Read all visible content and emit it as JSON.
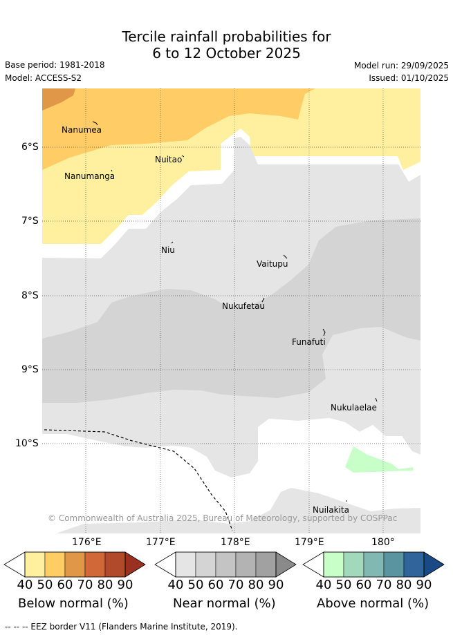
{
  "header": {
    "title_line1": "Tercile rainfall probabilities for",
    "title_line2": "6 to 12 October 2025",
    "base_period": "Base period: 1981-2018",
    "model": "Model: ACCESS-S2",
    "model_run": "Model run: 29/09/2025",
    "issued": "Issued: 01/10/2025"
  },
  "map": {
    "lat_labels": [
      "6°S",
      "7°S",
      "8°S",
      "9°S",
      "10°S"
    ],
    "lon_labels": [
      "176°E",
      "177°E",
      "178°E",
      "179°E",
      "180°"
    ],
    "places": {
      "nanumea": "Nanumea",
      "nuitao": "Nuitao",
      "nanumanga": "Nanumanga",
      "niu": "Niu",
      "vaitupu": "Vaitupu",
      "nukufetau": "Nukufetau",
      "funafuti": "Funafuti",
      "nukulaelae": "Nukulaelae",
      "nuilakita": "Nuilakita"
    },
    "copyright": "© Commonwealth of Australia 2025, Bureau of Meteorology, supported by COSPPac"
  },
  "legend": {
    "ticks": [
      "40",
      "50",
      "60",
      "70",
      "80",
      "90"
    ],
    "below": {
      "label": "Below normal (%)",
      "colors": [
        "#fff0a0",
        "#ffcc66",
        "#e09848",
        "#d06838",
        "#b04a2a",
        "#9a3020"
      ]
    },
    "near": {
      "label": "Near normal (%)",
      "colors": [
        "#e5e5e5",
        "#d4d4d4",
        "#c4c4c4",
        "#b3b3b3",
        "#a1a1a1",
        "#8a8a8a"
      ]
    },
    "above": {
      "label": "Above normal (%)",
      "colors": [
        "#c8ffc8",
        "#a2d9bd",
        "#82b8b2",
        "#5a94a0",
        "#30649a",
        "#1a4a86"
      ]
    }
  },
  "footnote": "-- -- -- EEZ border V11 (Flanders Marine Institute, 2019)."
}
